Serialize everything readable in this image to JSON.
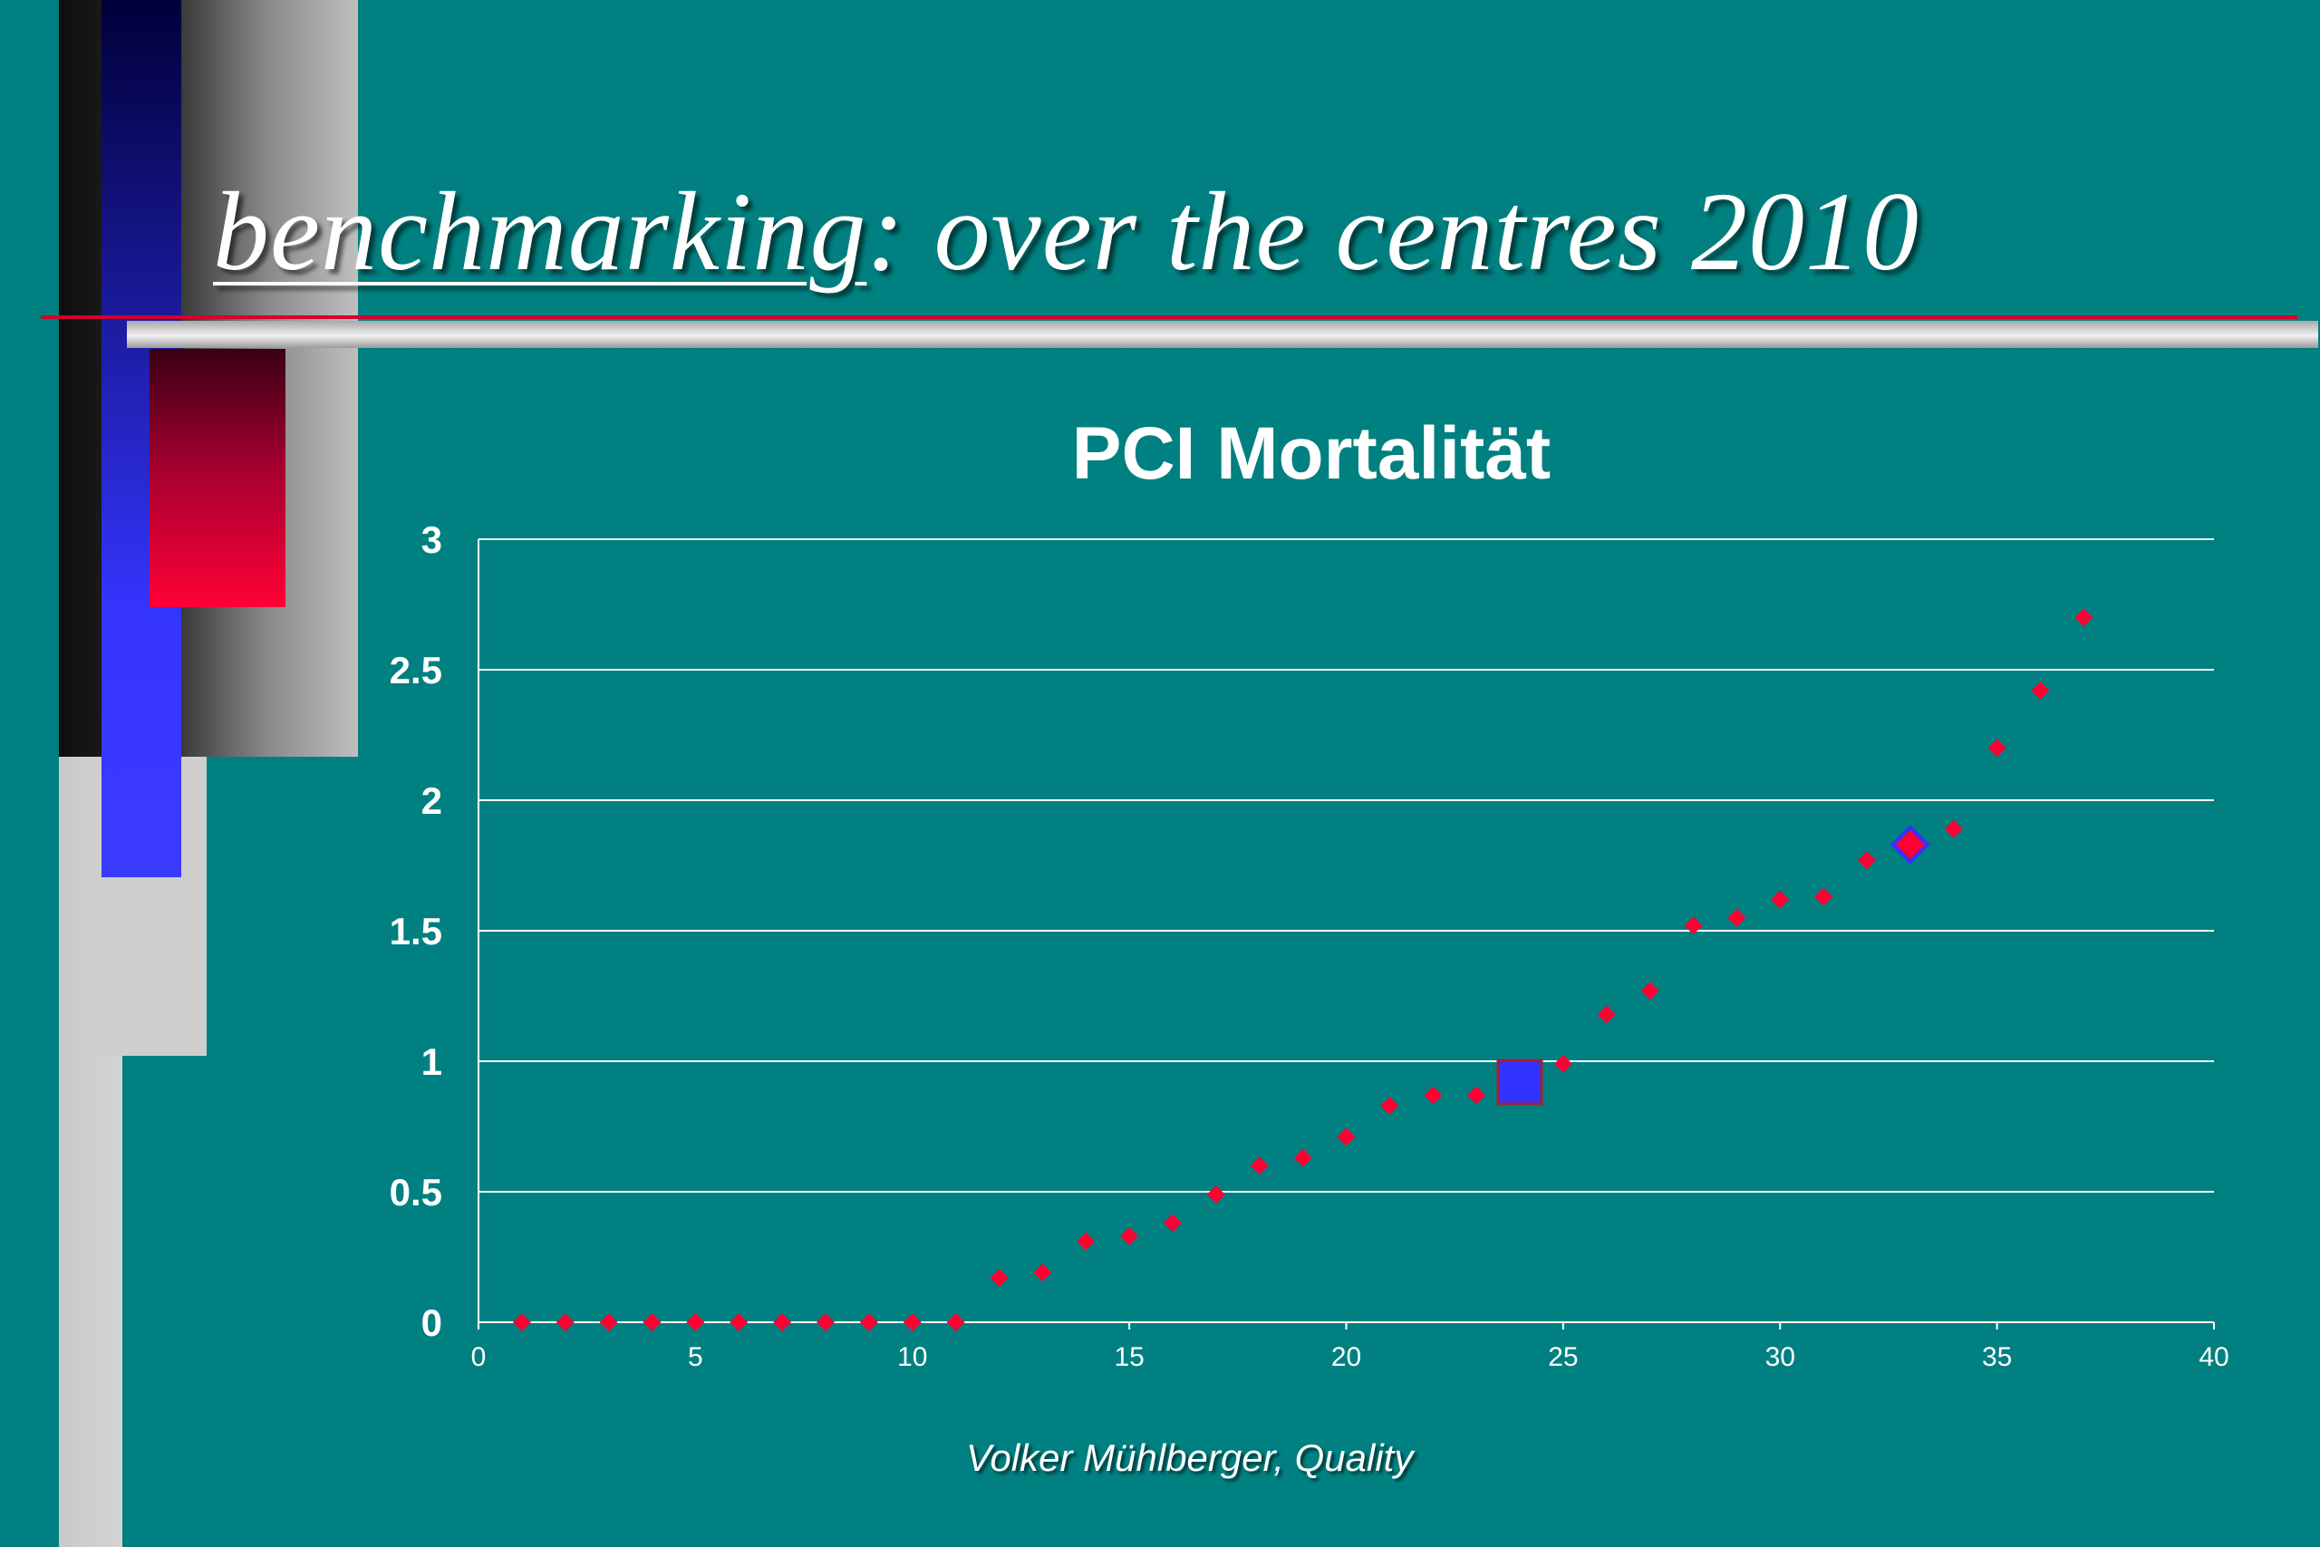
{
  "slide": {
    "title_underlined": "benchmarking",
    "title_rest": ": over the centres 2010",
    "footer": "Volker Mühlberger, Quality"
  },
  "colors": {
    "background": "#008080",
    "points": "#ff0033",
    "highlight_square": "#3333ff",
    "highlight_diamond_border": "#3333ff"
  },
  "chart_data": {
    "type": "scatter",
    "title": "PCI Mortalität",
    "xlabel": "",
    "ylabel": "",
    "xlim": [
      0,
      40
    ],
    "ylim": [
      0,
      3
    ],
    "xticks": [
      0,
      5,
      10,
      15,
      20,
      25,
      30,
      35,
      40
    ],
    "yticks": [
      0,
      0.5,
      1,
      1.5,
      2,
      2.5,
      3
    ],
    "ytick_labels": [
      "0",
      "0.5",
      "1",
      "1.5",
      "2",
      "2.5",
      "3"
    ],
    "grid": "horizontal",
    "marker": "diamond",
    "series": [
      {
        "x": [
          1,
          2,
          3,
          4,
          5,
          6,
          7,
          8,
          9,
          10,
          11,
          12,
          13,
          14,
          15,
          16,
          17,
          18,
          19,
          20,
          21,
          22,
          23,
          25,
          26,
          27,
          28,
          29,
          30,
          31,
          32,
          33,
          34,
          35,
          36,
          37
        ],
        "y": [
          0,
          0,
          0,
          0,
          0,
          0,
          0,
          0,
          0,
          0,
          0,
          0.17,
          0.19,
          0.31,
          0.33,
          0.38,
          0.49,
          0.6,
          0.63,
          0.71,
          0.83,
          0.87,
          0.87,
          0.99,
          1.18,
          1.27,
          1.52,
          1.55,
          1.62,
          1.63,
          1.77,
          1.83,
          1.89,
          2.2,
          2.42,
          2.7
        ]
      }
    ],
    "highlights": [
      {
        "x": 24,
        "y": 0.92,
        "marker": "square",
        "color": "#3333ff"
      },
      {
        "x": 33,
        "y": 1.83,
        "marker": "diamond",
        "color": "#ff0033",
        "border": "#3333ff"
      }
    ]
  }
}
